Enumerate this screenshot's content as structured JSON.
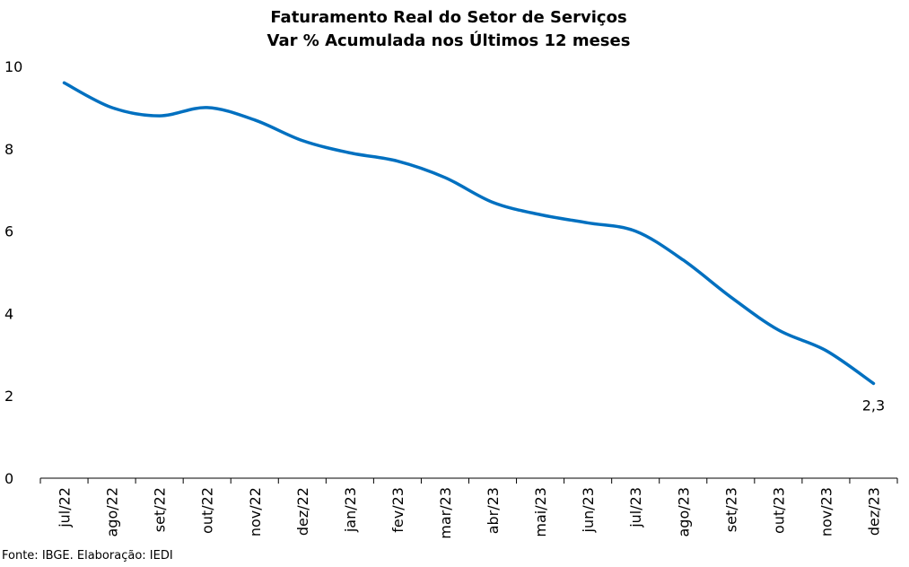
{
  "chart_data": {
    "type": "line",
    "title": "Faturamento Real do Setor de Serviços",
    "subtitle": "Var % Acumulada nos Últimos 12 meses",
    "categories": [
      "jul/22",
      "ago/22",
      "set/22",
      "out/22",
      "nov/22",
      "dez/22",
      "jan/23",
      "fev/23",
      "mar/23",
      "abr/23",
      "mai/23",
      "jun/23",
      "jul/23",
      "ago/23",
      "set/23",
      "out/23",
      "nov/23",
      "dez/23"
    ],
    "series": [
      {
        "values": [
          9.6,
          9.0,
          8.8,
          9.0,
          8.7,
          8.2,
          7.9,
          7.7,
          7.3,
          6.7,
          6.4,
          6.2,
          6.0,
          5.3,
          4.4,
          3.6,
          3.1,
          2.3
        ]
      }
    ],
    "yticks": [
      0,
      2,
      4,
      6,
      8,
      10
    ],
    "ylim": [
      0,
      10
    ],
    "grid": false,
    "line_color": "#0070C0",
    "data_label": {
      "category": "dez/23",
      "text": "2,3"
    }
  },
  "source": "Fonte: IBGE. Elaboração: IEDI"
}
